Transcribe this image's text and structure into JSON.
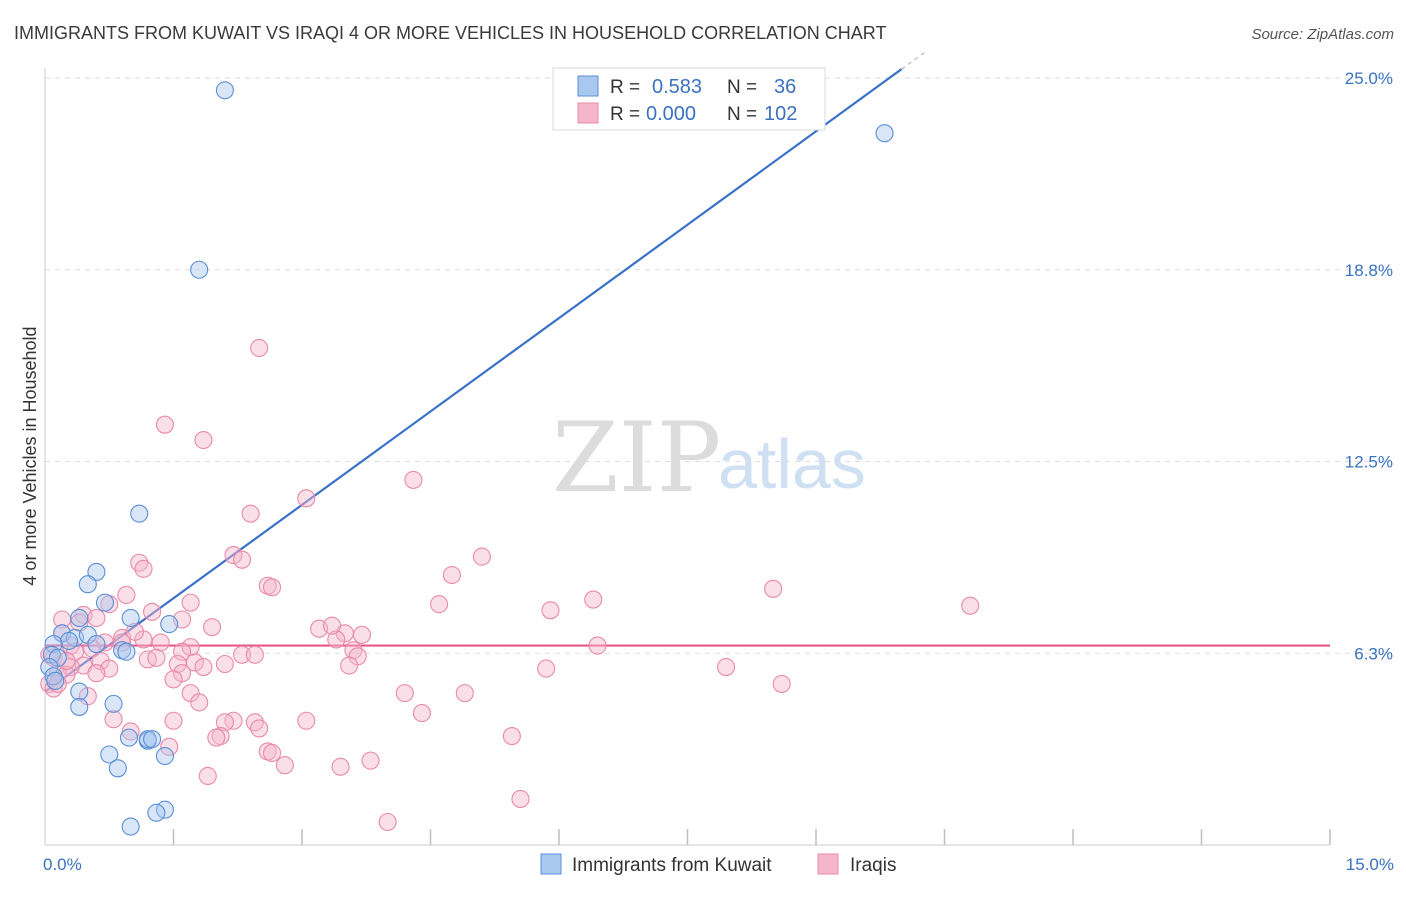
{
  "header": {
    "title": "IMMIGRANTS FROM KUWAIT VS IRAQI 4 OR MORE VEHICLES IN HOUSEHOLD CORRELATION CHART",
    "source": "Source: ZipAtlas.com"
  },
  "watermark": {
    "zip": "ZIP",
    "atlas": "atlas"
  },
  "legend_top": {
    "rows": [
      {
        "r_label": "R = ",
        "r_value": "0.583",
        "n_label": "N = ",
        "n_value": "36",
        "color": "#a9c8ef"
      },
      {
        "r_label": "R = ",
        "r_value": "0.000",
        "n_label": "N = ",
        "n_value": "102",
        "color": "#f5b6cb"
      }
    ]
  },
  "legend_bottom": {
    "items": [
      {
        "label": "Immigrants from Kuwait",
        "color": "#a9c8ef"
      },
      {
        "label": "Iraqis",
        "color": "#f5b6cb"
      }
    ]
  },
  "chart_data": {
    "type": "scatter",
    "title": "IMMIGRANTS FROM KUWAIT VS IRAQI 4 OR MORE VEHICLES IN HOUSEHOLD CORRELATION CHART",
    "xlabel": "",
    "ylabel": "4 or more Vehicles in Household",
    "xlim": [
      0,
      15
    ],
    "ylim": [
      0,
      25
    ],
    "x_tick_labels": {
      "min": "0.0%",
      "max": "15.0%"
    },
    "y_ticks": [
      {
        "value": 6.25,
        "label": "6.3%"
      },
      {
        "value": 12.5,
        "label": "12.5%"
      },
      {
        "value": 18.75,
        "label": "18.8%"
      },
      {
        "value": 25,
        "label": "25.0%"
      }
    ],
    "x_gridlines": [
      1.5,
      3,
      4.5,
      6,
      7.5,
      9,
      10.5,
      12,
      13.5,
      15
    ],
    "legend_position": "top-center",
    "series": [
      {
        "name": "Immigrants from Kuwait",
        "color": "#a9c8ef",
        "edge_color": "#5b8fd6",
        "line_color": "#3b72c9",
        "trend": {
          "x": [
            0,
            10.3
          ],
          "y": [
            5.0,
            25.9
          ],
          "solid_to_x": 10.0
        },
        "points": [
          [
            2.1,
            24.6
          ],
          [
            1.8,
            18.75
          ],
          [
            1.1,
            10.8
          ],
          [
            0.6,
            8.9
          ],
          [
            0.5,
            8.5
          ],
          [
            0.7,
            7.9
          ],
          [
            1.0,
            7.4
          ],
          [
            0.4,
            7.4
          ],
          [
            1.45,
            7.2
          ],
          [
            0.2,
            6.9
          ],
          [
            0.35,
            6.75
          ],
          [
            0.5,
            6.85
          ],
          [
            0.28,
            6.65
          ],
          [
            0.6,
            6.55
          ],
          [
            0.1,
            6.55
          ],
          [
            0.9,
            6.35
          ],
          [
            0.95,
            6.3
          ],
          [
            0.08,
            6.2
          ],
          [
            0.15,
            6.1
          ],
          [
            0.4,
            5.0
          ],
          [
            0.8,
            4.6
          ],
          [
            0.4,
            4.5
          ],
          [
            1.2,
            3.4
          ],
          [
            1.2,
            3.45
          ],
          [
            0.98,
            3.5
          ],
          [
            1.25,
            3.45
          ],
          [
            0.75,
            2.95
          ],
          [
            0.85,
            2.5
          ],
          [
            1.4,
            2.9
          ],
          [
            1.4,
            1.15
          ],
          [
            1.3,
            1.05
          ],
          [
            1.0,
            0.6
          ],
          [
            9.8,
            23.2
          ],
          [
            0.05,
            5.8
          ],
          [
            0.1,
            5.5
          ],
          [
            0.12,
            5.35
          ]
        ]
      },
      {
        "name": "Iraqis",
        "color": "#f5b6cb",
        "edge_color": "#e98aa9",
        "line_color": "#e8578a",
        "trend": {
          "x": [
            0,
            15
          ],
          "y": [
            6.5,
            6.5
          ]
        },
        "points": [
          [
            2.5,
            16.2
          ],
          [
            1.4,
            13.7
          ],
          [
            1.85,
            13.2
          ],
          [
            4.3,
            11.9
          ],
          [
            3.05,
            11.3
          ],
          [
            2.4,
            10.8
          ],
          [
            2.2,
            9.45
          ],
          [
            2.3,
            9.3
          ],
          [
            5.1,
            9.4
          ],
          [
            4.75,
            8.8
          ],
          [
            1.1,
            9.2
          ],
          [
            1.15,
            9.0
          ],
          [
            2.6,
            8.45
          ],
          [
            2.65,
            8.4
          ],
          [
            0.95,
            8.15
          ],
          [
            6.4,
            8.0
          ],
          [
            8.5,
            8.35
          ],
          [
            10.8,
            7.8
          ],
          [
            4.6,
            7.85
          ],
          [
            5.9,
            7.65
          ],
          [
            1.7,
            7.9
          ],
          [
            0.75,
            7.85
          ],
          [
            1.25,
            7.6
          ],
          [
            0.45,
            7.5
          ],
          [
            0.6,
            7.4
          ],
          [
            0.2,
            7.35
          ],
          [
            0.4,
            7.25
          ],
          [
            1.6,
            7.35
          ],
          [
            1.95,
            7.1
          ],
          [
            3.2,
            7.05
          ],
          [
            3.5,
            6.9
          ],
          [
            3.7,
            6.85
          ],
          [
            3.4,
            6.7
          ],
          [
            0.9,
            6.75
          ],
          [
            1.15,
            6.7
          ],
          [
            0.7,
            6.6
          ],
          [
            0.3,
            6.5
          ],
          [
            0.55,
            6.4
          ],
          [
            1.7,
            6.45
          ],
          [
            1.6,
            6.3
          ],
          [
            6.45,
            6.5
          ],
          [
            3.6,
            6.35
          ],
          [
            2.3,
            6.2
          ],
          [
            2.45,
            6.2
          ],
          [
            3.65,
            6.15
          ],
          [
            1.2,
            6.05
          ],
          [
            0.1,
            6.1
          ],
          [
            0.65,
            6.0
          ],
          [
            0.45,
            5.85
          ],
          [
            0.3,
            5.8
          ],
          [
            1.55,
            5.9
          ],
          [
            1.75,
            5.95
          ],
          [
            1.85,
            5.8
          ],
          [
            0.75,
            5.75
          ],
          [
            0.15,
            5.6
          ],
          [
            0.25,
            5.55
          ],
          [
            5.85,
            5.75
          ],
          [
            7.95,
            5.8
          ],
          [
            3.55,
            5.85
          ],
          [
            1.6,
            5.6
          ],
          [
            1.5,
            5.4
          ],
          [
            8.6,
            5.25
          ],
          [
            0.05,
            5.25
          ],
          [
            0.1,
            5.1
          ],
          [
            4.2,
            4.95
          ],
          [
            4.9,
            4.95
          ],
          [
            0.5,
            4.85
          ],
          [
            1.7,
            4.95
          ],
          [
            1.8,
            4.65
          ],
          [
            4.4,
            4.3
          ],
          [
            0.8,
            4.1
          ],
          [
            1.5,
            4.05
          ],
          [
            3.05,
            4.05
          ],
          [
            2.2,
            4.05
          ],
          [
            2.1,
            4.0
          ],
          [
            2.45,
            4.0
          ],
          [
            2.5,
            3.8
          ],
          [
            1.0,
            3.7
          ],
          [
            2.05,
            3.55
          ],
          [
            2.0,
            3.5
          ],
          [
            5.45,
            3.55
          ],
          [
            1.45,
            3.2
          ],
          [
            2.6,
            3.05
          ],
          [
            2.65,
            3.0
          ],
          [
            3.8,
            2.75
          ],
          [
            3.45,
            2.55
          ],
          [
            2.8,
            2.6
          ],
          [
            1.9,
            2.25
          ],
          [
            5.55,
            1.5
          ],
          [
            4.0,
            0.75
          ],
          [
            0.2,
            6.9
          ],
          [
            0.35,
            6.3
          ],
          [
            2.1,
            5.9
          ],
          [
            0.9,
            6.6
          ],
          [
            0.15,
            5.25
          ],
          [
            0.05,
            6.2
          ],
          [
            3.35,
            7.15
          ],
          [
            0.6,
            5.6
          ],
          [
            1.35,
            6.6
          ],
          [
            1.05,
            6.95
          ],
          [
            1.3,
            6.1
          ],
          [
            0.25,
            6.0
          ]
        ]
      }
    ]
  }
}
